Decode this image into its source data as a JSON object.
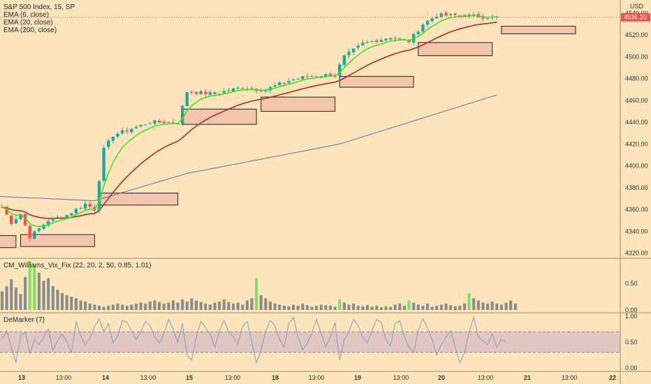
{
  "chart_data": [
    {
      "type": "candlestick",
      "title": "S&P 500 Index, 15, SP",
      "currency": "USD",
      "last_price": "4536.20",
      "ylim": [
        4320,
        4550
      ],
      "y_ticks": [
        "4540.00",
        "4520.00",
        "4500.00",
        "4480.00",
        "4460.00",
        "4440.00",
        "4420.00",
        "4400.00",
        "4380.00",
        "4360.00",
        "4340.00",
        "4320.00"
      ],
      "x_ticks": [
        "13",
        "13:00",
        "14",
        "13:00",
        "15",
        "13:00",
        "18",
        "13:00",
        "19",
        "13:00",
        "20",
        "13:00",
        "21",
        "13:00",
        "22"
      ],
      "legend": [
        "EMA (6, close)",
        "EMA (20, close)",
        "EMA (200, close)"
      ],
      "colors": {
        "up": "#26a69a",
        "down": "#ef5350",
        "ema6": "#43e023",
        "ema20": "#b02a1e",
        "ema200": "#6a6aa6",
        "zone_fill": "#f3c6ac",
        "zone_stroke": "#222222"
      },
      "demand_zones": [
        {
          "x0": -1,
          "x1": 3,
          "ylo": 4325,
          "yhi": 4336
        },
        {
          "x0": 4,
          "x1": 20,
          "ylo": 4326,
          "yhi": 4337
        },
        {
          "x0": 21,
          "x1": 38,
          "ylo": 4364,
          "yhi": 4375
        },
        {
          "x0": 39,
          "x1": 55,
          "ylo": 4438,
          "yhi": 4452
        },
        {
          "x0": 56,
          "x1": 72,
          "ylo": 4450,
          "yhi": 4463
        },
        {
          "x0": 73,
          "x1": 89,
          "ylo": 4472,
          "yhi": 4482
        },
        {
          "x0": 90,
          "x1": 106,
          "ylo": 4501,
          "yhi": 4513
        },
        {
          "x0": 108,
          "x1": 124,
          "ylo": 4521,
          "yhi": 4528
        }
      ],
      "ohlc_anchors": [
        {
          "x": 0,
          "c": 4362
        },
        {
          "x": 2,
          "c": 4348
        },
        {
          "x": 4,
          "c": 4356
        },
        {
          "x": 6,
          "c": 4335
        },
        {
          "x": 10,
          "c": 4350
        },
        {
          "x": 14,
          "c": 4355
        },
        {
          "x": 18,
          "c": 4365
        },
        {
          "x": 20,
          "c": 4360
        },
        {
          "x": 22,
          "c": 4415
        },
        {
          "x": 24,
          "c": 4428
        },
        {
          "x": 28,
          "c": 4434
        },
        {
          "x": 32,
          "c": 4440
        },
        {
          "x": 38,
          "c": 4440
        },
        {
          "x": 40,
          "c": 4468
        },
        {
          "x": 46,
          "c": 4466
        },
        {
          "x": 52,
          "c": 4472
        },
        {
          "x": 55,
          "c": 4470
        },
        {
          "x": 57,
          "c": 4470
        },
        {
          "x": 62,
          "c": 4478
        },
        {
          "x": 66,
          "c": 4482
        },
        {
          "x": 72,
          "c": 4484
        },
        {
          "x": 74,
          "c": 4500
        },
        {
          "x": 78,
          "c": 4512
        },
        {
          "x": 84,
          "c": 4518
        },
        {
          "x": 88,
          "c": 4514
        },
        {
          "x": 91,
          "c": 4530
        },
        {
          "x": 94,
          "c": 4538
        },
        {
          "x": 100,
          "c": 4538
        },
        {
          "x": 106,
          "c": 4536
        }
      ],
      "ema200_anchors": [
        {
          "x": -1,
          "y": 4372
        },
        {
          "x": 20,
          "y": 4368
        },
        {
          "x": 40,
          "y": 4393
        },
        {
          "x": 73,
          "y": 4420
        },
        {
          "x": 107,
          "y": 4465
        }
      ]
    },
    {
      "type": "bar",
      "title": "CM_Williams_Vix_Fix (22, 20, 2, 50, 0.85, 1.01)",
      "ylim": [
        0,
        1.0
      ],
      "y_ticks": [
        "0.50",
        "0.00"
      ],
      "colors": {
        "normal": "#8a8a8a",
        "highlight": "#7ee060"
      },
      "values": [
        0.35,
        0.45,
        0.58,
        0.42,
        0.3,
        0.62,
        0.92,
        0.85,
        0.7,
        0.55,
        0.6,
        0.45,
        0.38,
        0.32,
        0.28,
        0.25,
        0.22,
        0.18,
        0.16,
        0.12,
        0.1,
        0.08,
        0.06,
        0.08,
        0.1,
        0.12,
        0.1,
        0.08,
        0.1,
        0.12,
        0.14,
        0.12,
        0.16,
        0.18,
        0.15,
        0.12,
        0.14,
        0.18,
        0.14,
        0.2,
        0.16,
        0.22,
        0.18,
        0.15,
        0.12,
        0.1,
        0.14,
        0.16,
        0.2,
        0.15,
        0.12,
        0.14,
        0.1,
        0.18,
        0.22,
        0.6,
        0.28,
        0.22,
        0.16,
        0.12,
        0.1,
        0.08,
        0.07,
        0.1,
        0.08,
        0.12,
        0.09,
        0.06,
        0.08,
        0.1,
        0.09,
        0.08,
        0.06,
        0.2,
        0.14,
        0.1,
        0.12,
        0.08,
        0.07,
        0.09,
        0.06,
        0.08,
        0.05,
        0.07,
        0.06,
        0.1,
        0.12,
        0.08,
        0.18,
        0.14,
        0.1,
        0.08,
        0.12,
        0.06,
        0.08,
        0.1,
        0.12,
        0.09,
        0.07,
        0.08,
        0.12,
        0.32,
        0.22,
        0.18,
        0.14,
        0.12,
        0.16,
        0.12,
        0.1,
        0.14,
        0.18,
        0.12
      ],
      "highlight_indices": [
        6,
        7,
        55,
        73,
        88,
        101
      ]
    },
    {
      "type": "line",
      "title": "DeMarker (7)",
      "ylim": [
        0,
        1.0
      ],
      "y_ticks": [
        "1.00",
        "0.50",
        "0.00"
      ],
      "band": [
        0.3,
        0.7
      ],
      "colors": {
        "line": "#7a9fc0",
        "band": "#e2c6c2",
        "dash": "#8a8a8a"
      },
      "values": [
        0.55,
        0.72,
        0.4,
        0.1,
        0.62,
        0.7,
        0.28,
        0.55,
        0.45,
        0.6,
        0.75,
        0.35,
        0.52,
        0.66,
        0.5,
        0.3,
        0.9,
        0.62,
        0.45,
        0.58,
        0.8,
        0.95,
        0.7,
        0.86,
        0.48,
        0.62,
        0.92,
        0.88,
        0.72,
        0.55,
        0.7,
        0.9,
        0.82,
        0.6,
        0.48,
        0.66,
        0.94,
        0.75,
        0.5,
        0.86,
        0.25,
        0.15,
        0.6,
        0.9,
        0.78,
        0.65,
        0.4,
        0.72,
        0.92,
        0.7,
        0.6,
        0.46,
        0.8,
        0.9,
        0.5,
        0.1,
        0.35,
        0.7,
        0.92,
        0.82,
        0.55,
        0.4,
        0.86,
        0.98,
        0.6,
        0.35,
        0.48,
        0.68,
        0.94,
        0.66,
        0.4,
        0.6,
        0.88,
        0.15,
        0.55,
        0.7,
        0.94,
        0.82,
        0.6,
        0.48,
        0.72,
        0.94,
        0.88,
        0.55,
        0.42,
        0.86,
        0.92,
        0.6,
        0.4,
        0.3,
        0.72,
        0.95,
        0.78,
        0.55,
        0.25,
        0.45,
        0.6,
        0.72,
        0.4,
        0.1,
        0.3,
        0.7,
        0.98,
        0.6,
        0.52,
        0.45,
        0.66,
        0.4,
        0.55,
        0.5
      ]
    }
  ]
}
